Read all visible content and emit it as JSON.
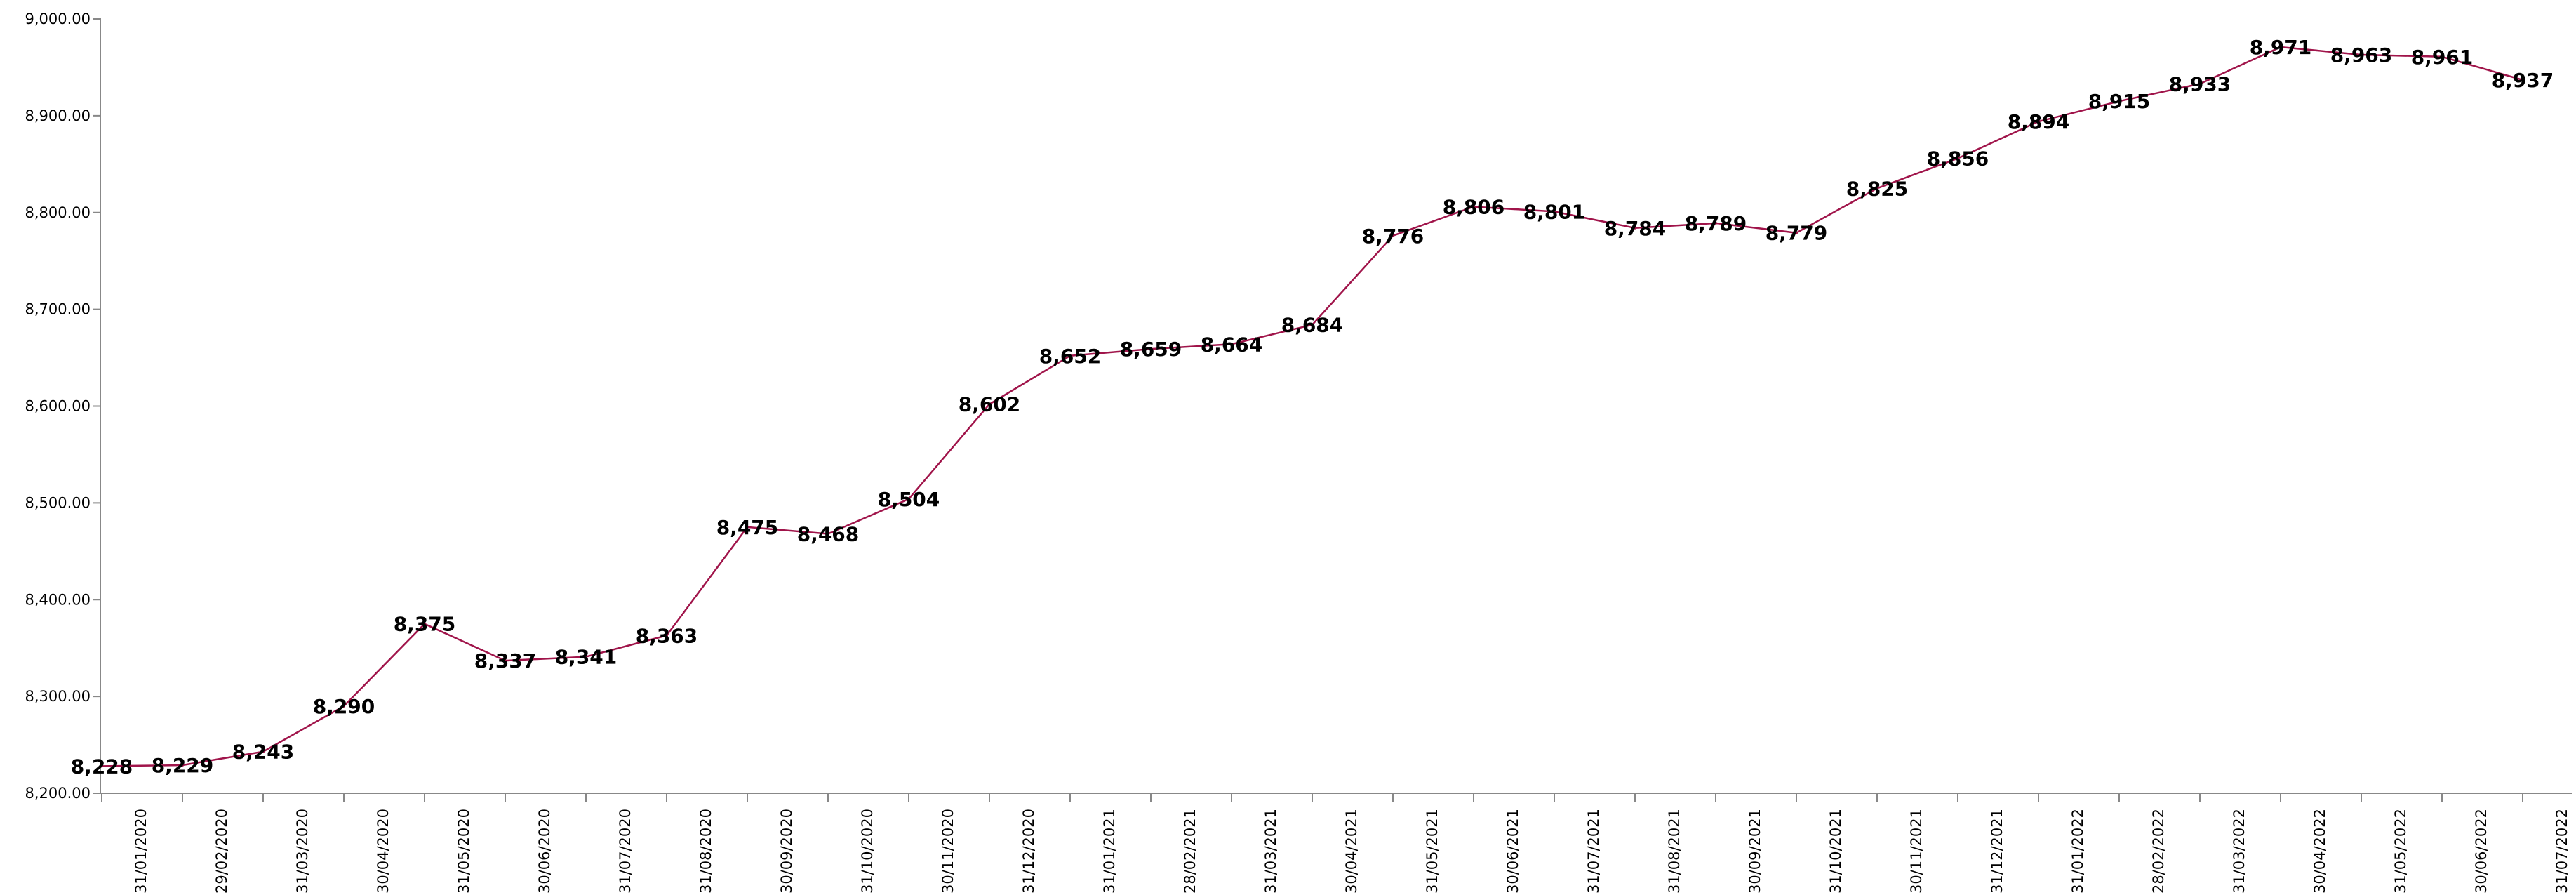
{
  "chart_data": {
    "type": "line",
    "title": "",
    "xlabel": "",
    "ylabel": "",
    "ylim": [
      8200,
      9000
    ],
    "y_ticks": [
      "8,200.00",
      "8,300.00",
      "8,400.00",
      "8,500.00",
      "8,600.00",
      "8,700.00",
      "8,800.00",
      "8,900.00",
      "9,000.00"
    ],
    "y_tick_values": [
      8200,
      8300,
      8400,
      8500,
      8600,
      8700,
      8800,
      8900,
      9000
    ],
    "grid": false,
    "legend": "none",
    "line_color": "#a0144a",
    "categories": [
      "31/01/2020",
      "29/02/2020",
      "31/03/2020",
      "30/04/2020",
      "31/05/2020",
      "30/06/2020",
      "31/07/2020",
      "31/08/2020",
      "30/09/2020",
      "31/10/2020",
      "30/11/2020",
      "31/12/2020",
      "31/01/2021",
      "28/02/2021",
      "31/03/2021",
      "30/04/2021",
      "31/05/2021",
      "30/06/2021",
      "31/07/2021",
      "31/08/2021",
      "30/09/2021",
      "31/10/2021",
      "30/11/2021",
      "31/12/2021",
      "31/01/2022",
      "28/02/2022",
      "31/03/2022",
      "30/04/2022",
      "31/05/2022",
      "30/06/2022",
      "31/07/2022"
    ],
    "values": [
      8228,
      8229,
      8243,
      8290,
      8375,
      8337,
      8341,
      8363,
      8475,
      8468,
      8504,
      8602,
      8652,
      8659,
      8664,
      8684,
      8776,
      8806,
      8801,
      8784,
      8789,
      8779,
      8825,
      8856,
      8894,
      8915,
      8933,
      8971,
      8963,
      8961,
      8937
    ],
    "value_labels": [
      "8,228",
      "8,229",
      "8,243",
      "8,290",
      "8,375",
      "8,337",
      "8,341",
      "8,363",
      "8,475",
      "8,468",
      "8,504",
      "8,602",
      "8,652",
      "8,659",
      "8,664",
      "8,684",
      "8,776",
      "8,806",
      "8,801",
      "8,784",
      "8,789",
      "8,779",
      "8,825",
      "8,856",
      "8,894",
      "8,915",
      "8,933",
      "8,971",
      "8,963",
      "8,961",
      "8,937"
    ]
  }
}
